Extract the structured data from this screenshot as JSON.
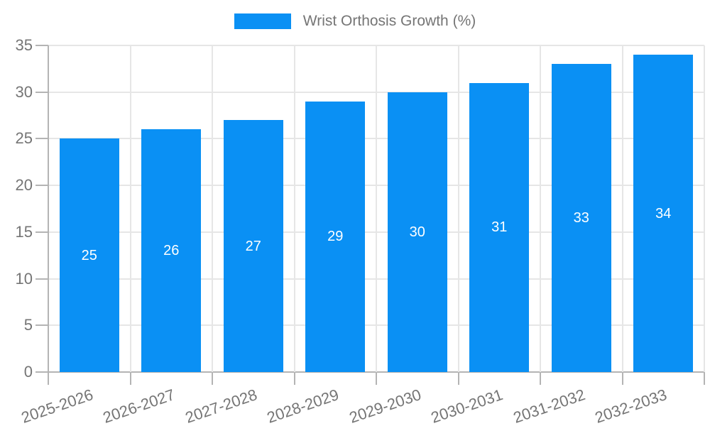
{
  "legend": {
    "label": "Wrist Orthosis Growth (%)"
  },
  "chart_data": {
    "type": "bar",
    "title": "Wrist Orthosis Growth (%)",
    "series_name": "Wrist Orthosis Growth (%)",
    "categories": [
      "2025-2026",
      "2026-2027",
      "2027-2028",
      "2028-2029",
      "2029-2030",
      "2030-2031",
      "2031-2032",
      "2032-2033"
    ],
    "values": [
      25,
      26,
      27,
      29,
      30,
      31,
      33,
      34
    ],
    "value_labels": [
      "25",
      "26",
      "27",
      "29",
      "30",
      "31",
      "33",
      "34"
    ],
    "ylabel": "",
    "xlabel": "",
    "ylim": [
      0,
      35
    ],
    "yticks": [
      0,
      5,
      10,
      15,
      20,
      25,
      30,
      35
    ],
    "grid": true,
    "legend_position": "top-center",
    "colors": {
      "bar": "#0a90f4",
      "value_label": "#ffffff",
      "axis_text": "#757575",
      "gridline": "#e6e6e6",
      "axis_line": "#b4b4b4"
    }
  }
}
